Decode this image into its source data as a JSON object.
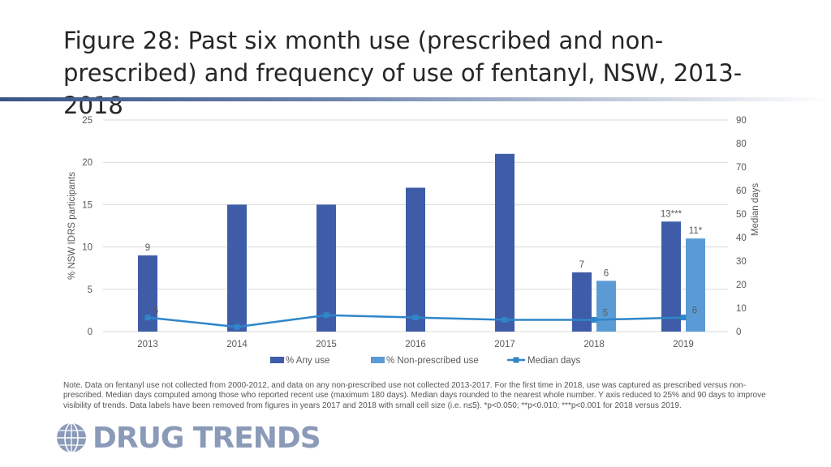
{
  "slide": {
    "title": "Figure 28: Past six month use (prescribed and non-prescribed) and frequency of use of fentanyl, NSW, 2013-2018",
    "note": "Note. Data on fentanyl use not collected from 2000-2012, and data on any non-prescribed use not collected 2013-2017. For the first time in 2018, use was captured as prescribed versus non-prescribed. Median days computed among those who reported recent use (maximum 180 days). Median days rounded to the nearest whole number. Y axis reduced to 25% and 90 days to improve visibility of trends. Data labels have been removed from figures in years 2017 and 2018 with small cell size (i.e. n≤5). *p<0.050; **p<0.010; ***p<0.001 for 2018 versus 2019.",
    "logo_text": "DRUG TRENDS"
  },
  "colors": {
    "any_use": "#3f5ca8",
    "non_prescribed": "#5b9bd5",
    "median_line": "#2f86c9",
    "grid": "#d9d9d9",
    "axis_text": "#595959"
  },
  "chart_data": {
    "type": "bar",
    "categories": [
      "2013",
      "2014",
      "2015",
      "2016",
      "2017",
      "2018",
      "2019"
    ],
    "series": [
      {
        "name": "% Any use",
        "type": "bar",
        "axis": "left",
        "values": [
          9,
          15,
          15,
          17,
          21,
          7,
          13
        ],
        "labels": [
          "9",
          null,
          null,
          null,
          null,
          "7",
          "13***"
        ]
      },
      {
        "name": "% Non-prescribed use",
        "type": "bar",
        "axis": "left",
        "values": [
          null,
          null,
          null,
          null,
          null,
          6,
          11
        ],
        "labels": [
          null,
          null,
          null,
          null,
          null,
          "6",
          "11*"
        ]
      },
      {
        "name": "Median days",
        "type": "line",
        "axis": "right",
        "values": [
          6,
          2,
          7,
          6,
          5,
          5,
          6
        ],
        "labels": [
          "6",
          null,
          null,
          null,
          null,
          "5",
          "6"
        ]
      }
    ],
    "ylabel": "% NSW IDRS participants",
    "ylim": [
      0,
      25
    ],
    "yticks": [
      0,
      5,
      10,
      15,
      20,
      25
    ],
    "y2label": "Median days",
    "y2lim": [
      0,
      90
    ],
    "y2ticks": [
      0,
      10,
      20,
      30,
      40,
      50,
      60,
      70,
      80,
      90
    ],
    "grid": true,
    "legend_position": "bottom"
  }
}
